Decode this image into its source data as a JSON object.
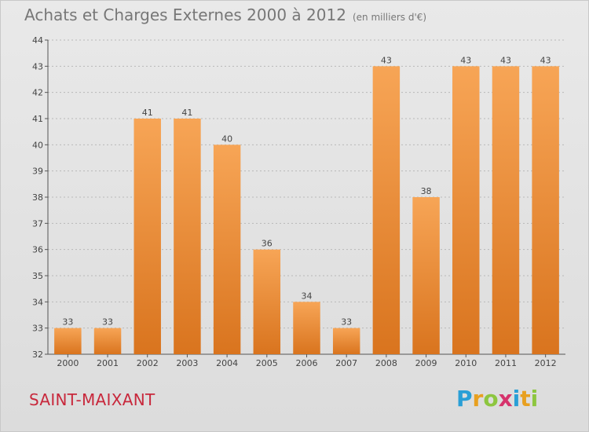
{
  "title": "Achats et Charges Externes 2000 à 2012",
  "subtitle": "(en milliers d'€)",
  "commune": "SAINT-MAIXANT",
  "brand": {
    "letters": [
      "P",
      "r",
      "o",
      "x",
      "i",
      "t",
      "i"
    ],
    "colors": [
      "#2a9fd6",
      "#e8a020",
      "#8dc63f",
      "#d6336c",
      "#2a9fd6",
      "#e8a020",
      "#8dc63f"
    ]
  },
  "colors": {
    "bar_top": "#f7a556",
    "bar_bottom": "#d9741e",
    "grid": "#b8b8b8"
  },
  "chart_data": {
    "type": "bar",
    "title": "Achats et Charges Externes 2000 à 2012",
    "categories": [
      "2000",
      "2001",
      "2002",
      "2003",
      "2004",
      "2005",
      "2006",
      "2007",
      "2008",
      "2009",
      "2010",
      "2011",
      "2012"
    ],
    "values": [
      33,
      33,
      41,
      41,
      40,
      36,
      34,
      33,
      43,
      38,
      43,
      43,
      43
    ],
    "ylim": [
      32,
      44
    ],
    "yticks": [
      32,
      33,
      34,
      35,
      36,
      37,
      38,
      39,
      40,
      41,
      42,
      43,
      44
    ],
    "grid": true,
    "data_labels": [
      "33",
      "33",
      "41",
      "41",
      "40",
      "36",
      "34",
      "33",
      "43",
      "38",
      "43",
      "43",
      "43"
    ]
  }
}
